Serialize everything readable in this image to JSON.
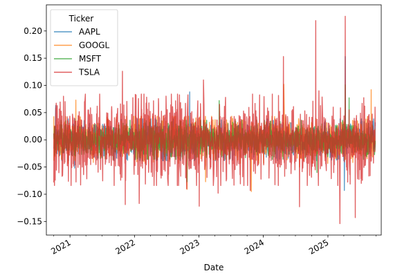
{
  "chart_data": {
    "type": "line",
    "title": "",
    "xlabel": "Date",
    "ylabel": "",
    "xlim": [
      "2020-08-20",
      "2025-10-30"
    ],
    "ylim": [
      -0.175,
      0.248
    ],
    "grid": false,
    "legend": {
      "title": "Ticker",
      "position": "upper-left"
    },
    "x_ticks": [
      {
        "date": "2021-01-01",
        "label": "2021"
      },
      {
        "date": "2022-01-01",
        "label": "2022"
      },
      {
        "date": "2023-01-01",
        "label": "2023"
      },
      {
        "date": "2024-01-01",
        "label": "2024"
      },
      {
        "date": "2025-01-01",
        "label": "2025"
      }
    ],
    "y_ticks": [
      {
        "value": -0.15,
        "label": "−0.15"
      },
      {
        "value": -0.1,
        "label": "−0.10"
      },
      {
        "value": -0.05,
        "label": "−0.05"
      },
      {
        "value": 0.0,
        "label": "0.00"
      },
      {
        "value": 0.05,
        "label": "0.05"
      },
      {
        "value": 0.1,
        "label": "0.10"
      },
      {
        "value": 0.15,
        "label": "0.15"
      },
      {
        "value": 0.2,
        "label": "0.20"
      }
    ],
    "date_range": [
      "2020-10-01",
      "2025-09-26"
    ],
    "series": [
      {
        "name": "AAPL",
        "color": "#1f77b4",
        "base_sigma": 0.016,
        "spikes": [
          {
            "date": "2020-10-12",
            "value": 0.063
          },
          {
            "date": "2021-01-27",
            "value": -0.052
          },
          {
            "date": "2022-11-10",
            "value": 0.088
          },
          {
            "date": "2025-04-04",
            "value": -0.093
          },
          {
            "date": "2025-04-09",
            "value": 0.153
          }
        ]
      },
      {
        "name": "GOOGL",
        "color": "#ff7f0e",
        "base_sigma": 0.018,
        "spikes": [
          {
            "date": "2021-02-03",
            "value": 0.073
          },
          {
            "date": "2022-10-26",
            "value": -0.091
          },
          {
            "date": "2023-02-08",
            "value": -0.077
          },
          {
            "date": "2023-10-25",
            "value": -0.095
          },
          {
            "date": "2024-04-26",
            "value": 0.102
          },
          {
            "date": "2024-07-24",
            "value": -0.05
          },
          {
            "date": "2025-09-03",
            "value": 0.092
          }
        ]
      },
      {
        "name": "MSFT",
        "color": "#2ca02c",
        "base_sigma": 0.015,
        "spikes": [
          {
            "date": "2022-10-26",
            "value": -0.077
          },
          {
            "date": "2023-04-26",
            "value": 0.072
          },
          {
            "date": "2024-10-31",
            "value": -0.06
          },
          {
            "date": "2025-04-09",
            "value": 0.101
          },
          {
            "date": "2025-05-01",
            "value": 0.077
          }
        ]
      },
      {
        "name": "TSLA",
        "color": "#d62728",
        "base_sigma": 0.035,
        "spikes": [
          {
            "date": "2020-10-09",
            "value": -0.074
          },
          {
            "date": "2021-10-25",
            "value": 0.126
          },
          {
            "date": "2021-11-10",
            "value": -0.119
          },
          {
            "date": "2022-01-28",
            "value": -0.117
          },
          {
            "date": "2022-10-24",
            "value": -0.09
          },
          {
            "date": "2023-01-03",
            "value": -0.122
          },
          {
            "date": "2023-01-27",
            "value": 0.11
          },
          {
            "date": "2023-04-20",
            "value": -0.098
          },
          {
            "date": "2023-10-19",
            "value": -0.093
          },
          {
            "date": "2024-04-24",
            "value": 0.153
          },
          {
            "date": "2024-07-24",
            "value": -0.123
          },
          {
            "date": "2024-10-24",
            "value": 0.219
          },
          {
            "date": "2024-11-11",
            "value": 0.09
          },
          {
            "date": "2025-03-10",
            "value": -0.154
          },
          {
            "date": "2025-04-09",
            "value": 0.227
          },
          {
            "date": "2025-06-05",
            "value": -0.143
          }
        ]
      }
    ]
  }
}
